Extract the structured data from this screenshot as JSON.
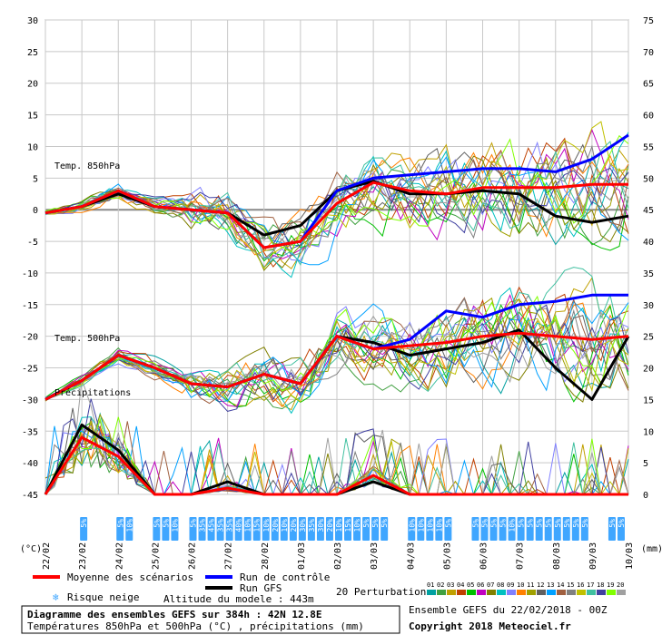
{
  "chart_data": {
    "type": "line",
    "title": "Diagramme des ensembles GEFS sur 384h : 42N 12.8E",
    "subtitle": "Températures 850hPa et 500hPa (°C) , précipitations (mm)",
    "left_axis_ticks": [
      "30",
      "25",
      "20",
      "15",
      "10",
      "5",
      "0",
      "-5",
      "-10",
      "-15",
      "-20",
      "-25",
      "-30",
      "-35",
      "-40",
      "-45"
    ],
    "right_axis_ticks": [
      "75",
      "70",
      "65",
      "60",
      "55",
      "50",
      "45",
      "40",
      "35",
      "30",
      "25",
      "20",
      "15",
      "10",
      "5",
      "0"
    ],
    "left_unit": "(°C)",
    "right_unit": "(mm)",
    "ylim": [
      -45,
      30
    ],
    "x_labels": [
      "22/02",
      "23/02",
      "24/02",
      "25/02",
      "26/02",
      "27/02",
      "28/02",
      "01/03",
      "02/03",
      "03/03",
      "04/03",
      "05/03",
      "06/03",
      "07/03",
      "08/03",
      "09/03",
      "10/03"
    ],
    "panel_labels": {
      "t850": "Temp. 850hPa",
      "t500": "Temp. 500hPa",
      "precip": "Précipitations"
    },
    "days": [
      0,
      1,
      2,
      3,
      4,
      5,
      6,
      7,
      8,
      9,
      10,
      11,
      12,
      13,
      14,
      15,
      16
    ],
    "series": [
      {
        "key": "mean850",
        "color": "#ff0000",
        "values": [
          -0.5,
          0.5,
          3,
          0.5,
          0,
          -0.5,
          -6,
          -5,
          1,
          4.3,
          3,
          2.5,
          3.5,
          3.5,
          3.5,
          4,
          4
        ]
      },
      {
        "key": "ctrl850",
        "color": "#0000ff",
        "values": [
          -0.5,
          0.5,
          3,
          0.5,
          0,
          -0.5,
          -6,
          -5,
          3,
          5,
          5.5,
          6,
          6.5,
          6.5,
          6,
          8,
          11.8
        ]
      },
      {
        "key": "gfs850",
        "color": "#000000",
        "values": [
          -0.5,
          0.5,
          2.5,
          0.5,
          0,
          -0.5,
          -4,
          -2.5,
          3,
          4.5,
          2.5,
          2.5,
          3,
          2.5,
          -1,
          -2,
          -1
        ]
      },
      {
        "key": "mean500",
        "color": "#ff0000",
        "values": [
          -30,
          -27,
          -23,
          -25,
          -27.5,
          -28,
          -26,
          -27.5,
          -20,
          -22,
          -21.5,
          -21,
          -20,
          -19.5,
          -20,
          -20.5,
          -20
        ]
      },
      {
        "key": "ctrl500",
        "color": "#0000ff",
        "values": [
          -30,
          -27,
          -23,
          -25,
          -27.5,
          -28,
          -26,
          -27.5,
          -20,
          -22,
          -20.5,
          -16,
          -17,
          -15,
          -14.5,
          -13.5,
          -13.5
        ]
      },
      {
        "key": "gfs500",
        "color": "#000000",
        "values": [
          -30,
          -27,
          -23,
          -25,
          -27.5,
          -28,
          -26,
          -27.5,
          -20,
          -21,
          -23,
          -22,
          -21,
          -19,
          -25,
          -30,
          -20
        ]
      },
      {
        "key": "meanPrecip",
        "color": "#ff0000",
        "values": [
          0,
          9,
          6,
          0,
          0,
          1,
          0,
          0,
          0,
          3,
          0,
          0,
          0,
          0,
          0,
          0,
          0
        ]
      },
      {
        "key": "gfsPrecip",
        "color": "#000000",
        "values": [
          0,
          11,
          7,
          0,
          0,
          2,
          0,
          0,
          0,
          2,
          0,
          0,
          0,
          0,
          0,
          0,
          0
        ]
      }
    ],
    "snow_risk": [
      {
        "day": 1.0,
        "text": "5%"
      },
      {
        "day": 2.0,
        "text": "5%"
      },
      {
        "day": 2.25,
        "text": "10%"
      },
      {
        "day": 3.0,
        "text": "5%"
      },
      {
        "day": 3.25,
        "text": "5%"
      },
      {
        "day": 3.5,
        "text": "10%"
      },
      {
        "day": 4.0,
        "text": "5%"
      },
      {
        "day": 4.25,
        "text": "35%"
      },
      {
        "day": 4.5,
        "text": "45%"
      },
      {
        "day": 4.75,
        "text": "35%"
      },
      {
        "day": 5.0,
        "text": "35%"
      },
      {
        "day": 5.25,
        "text": "40%"
      },
      {
        "day": 5.5,
        "text": "10%"
      },
      {
        "day": 5.75,
        "text": "15%"
      },
      {
        "day": 6.0,
        "text": "10%"
      },
      {
        "day": 6.25,
        "text": "20%"
      },
      {
        "day": 6.5,
        "text": "10%"
      },
      {
        "day": 6.75,
        "text": "20%"
      },
      {
        "day": 7.0,
        "text": "30%"
      },
      {
        "day": 7.25,
        "text": "35%"
      },
      {
        "day": 7.5,
        "text": "30%"
      },
      {
        "day": 7.75,
        "text": "20%"
      },
      {
        "day": 8.0,
        "text": "10%"
      },
      {
        "day": 8.25,
        "text": "15%"
      },
      {
        "day": 8.5,
        "text": "10%"
      },
      {
        "day": 8.75,
        "text": "5%"
      },
      {
        "day": 9.0,
        "text": "5%"
      },
      {
        "day": 9.25,
        "text": "5%"
      },
      {
        "day": 10.0,
        "text": "10%"
      },
      {
        "day": 10.25,
        "text": "10%"
      },
      {
        "day": 10.5,
        "text": "10%"
      },
      {
        "day": 10.75,
        "text": "10%"
      },
      {
        "day": 11.0,
        "text": "5%"
      },
      {
        "day": 11.75,
        "text": "5%"
      },
      {
        "day": 12.0,
        "text": "5%"
      },
      {
        "day": 12.25,
        "text": "5%"
      },
      {
        "day": 12.5,
        "text": "5%"
      },
      {
        "day": 12.75,
        "text": "10%"
      },
      {
        "day": 13.0,
        "text": "5%"
      },
      {
        "day": 13.25,
        "text": "5%"
      },
      {
        "day": 13.5,
        "text": "5%"
      },
      {
        "day": 13.75,
        "text": "5%"
      },
      {
        "day": 14.0,
        "text": "5%"
      },
      {
        "day": 14.25,
        "text": "5%"
      },
      {
        "day": 14.5,
        "text": "5%"
      },
      {
        "day": 14.75,
        "text": "5%"
      },
      {
        "day": 15.5,
        "text": "5%"
      },
      {
        "day": 15.75,
        "text": "5%"
      }
    ],
    "member_colors": [
      "#00a0a0",
      "#40a040",
      "#c0a000",
      "#c04000",
      "#00c000",
      "#c000c0",
      "#808000",
      "#00c0c0",
      "#8080ff",
      "#ff8000",
      "#a0a000",
      "#606060",
      "#00a0ff",
      "#a06040",
      "#808080",
      "#c0c000",
      "#40c0a0",
      "#4040a0",
      "#80ff00",
      "#a0a0a0"
    ]
  },
  "legend": {
    "mean": "Moyenne des scénarios",
    "control": "Run de contrôle",
    "gfs": "Run GFS",
    "perturbations": "20 Perturbations",
    "snow": "Risque neige",
    "altitude": "Altitude du modele : 443m",
    "member_numbers": [
      "01",
      "02",
      "03",
      "04",
      "05",
      "06",
      "07",
      "08",
      "09",
      "10",
      "11",
      "12",
      "13",
      "14",
      "15",
      "16",
      "17",
      "18",
      "19",
      "20"
    ],
    "colors": {
      "mean": "#ff0000",
      "control": "#0000ff",
      "gfs": "#000000",
      "snow": "#3fa6ff"
    }
  },
  "footer": {
    "ensemble": "Ensemble GEFS du 22/02/2018 - 00Z",
    "copyright": "Copyright 2018 Meteociel.fr"
  }
}
